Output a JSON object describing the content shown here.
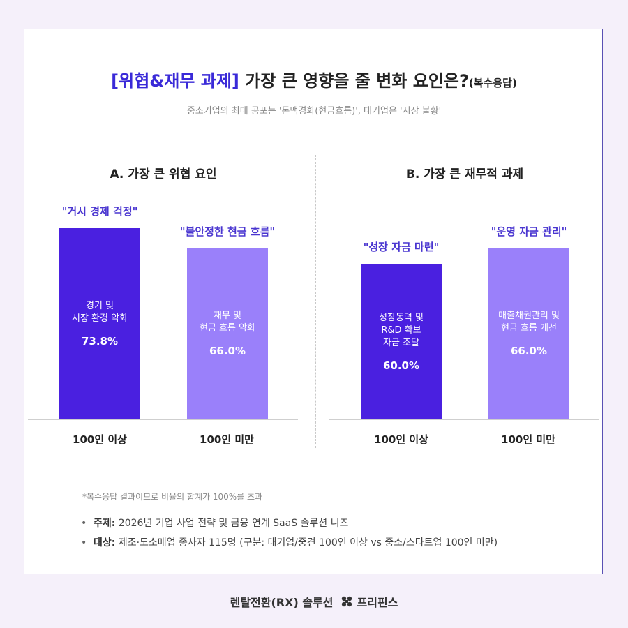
{
  "header": {
    "title_highlight": "[위협&재무 과제]",
    "title_main": " 가장 큰 영향을 줄 변화 요인은?",
    "title_suffix": "(복수응답)",
    "subtitle": "중소기업의 최대 공포는 '돈맥경화(현금흐름)', 대기업은 '시장 불황'"
  },
  "colors": {
    "dark_bar": "#4a20e0",
    "light_bar": "#9a80fa",
    "accent": "#3a2ad8"
  },
  "chart_data": [
    {
      "type": "bar",
      "title": "A. 가장 큰 위협 요인",
      "categories": [
        "100인 이상",
        "100인 미만"
      ],
      "values": [
        73.8,
        66.0
      ],
      "value_labels": [
        "73.8%",
        "66.0%"
      ],
      "quotes": [
        "\"거시 경제 걱정\"",
        "\"불안정한 현금 흐름\""
      ],
      "bar_texts": [
        "경기 및\n시장 환경 악화",
        "재무 및\n현금 흐름 악화"
      ],
      "ylim": [
        0,
        100
      ]
    },
    {
      "type": "bar",
      "title": "B. 가장 큰 재무적 과제",
      "categories": [
        "100인 이상",
        "100인 미만"
      ],
      "values": [
        60.0,
        66.0
      ],
      "value_labels": [
        "60.0%",
        "66.0%"
      ],
      "quotes": [
        "\"성장 자금 마련\"",
        "\"운영 자금 관리\""
      ],
      "bar_texts": [
        "성장동력 및\nR&D 확보\n자금 조달",
        "매출채권관리 및\n현금 흐름 개선"
      ],
      "ylim": [
        0,
        100
      ]
    }
  ],
  "notes": {
    "asterisk": "*복수응답 결과이므로 비율의 합계가 100%를 초과",
    "topic_key": "주제:",
    "topic_value": " 2026년 기업 사업 전략 및 금융 연계 SaaS 솔루션 니즈",
    "target_key": "대상:",
    "target_value": " 제조·도소매업 종사자 115명 (구분: 대기업/중견 100인 이상 vs 중소/스타트업 100인 미만)"
  },
  "footer": {
    "left_text": "렌탈전환(RX) 솔루션",
    "brand": "프리핀스",
    "logo_icon": "brand-logo-icon"
  }
}
